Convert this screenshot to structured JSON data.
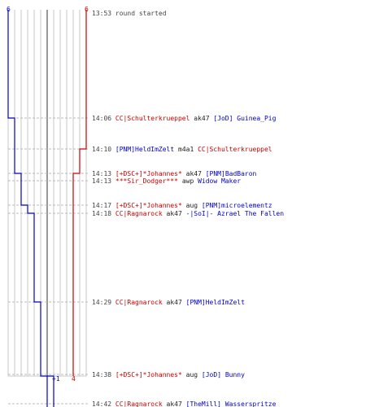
{
  "colors": {
    "team_blue": "#0000cc",
    "team_red": "#cc0000",
    "time": "#444444",
    "weapon": "#222222",
    "grid": "#c8c8c8",
    "median": "#777777",
    "dash": "#bbbbbb"
  },
  "score_top": {
    "blue": "6",
    "red": "6"
  },
  "score_bottom": {
    "blue": "1",
    "red": "4"
  },
  "events": [
    {
      "time": "13:53",
      "text": "round started",
      "killer": "",
      "weapon": "",
      "victim": "",
      "killer_team": "",
      "victim_team": ""
    },
    {
      "time": "14:06",
      "killer": "CC|Schulterkrueppel",
      "weapon": "ak47",
      "victim": "[JoD] Guinea_Pig",
      "killer_team": "red",
      "victim_team": "blue"
    },
    {
      "time": "14:10",
      "killer": "[PNM]HeldImZelt",
      "weapon": "m4a1",
      "victim": "CC|Schulterkrueppel",
      "killer_team": "blue",
      "victim_team": "red"
    },
    {
      "time": "14:13",
      "killer": "[+DSC+]*Johannes*",
      "weapon": "ak47",
      "victim": "[PNM]BadBaron",
      "killer_team": "red",
      "victim_team": "blue"
    },
    {
      "time": "14:13",
      "killer": "***Sir_Dodger***",
      "weapon": "awp",
      "victim": "Widow Maker",
      "killer_team": "red",
      "victim_team": "blue"
    },
    {
      "time": "14:17",
      "killer": "[+DSC+]*Johannes*",
      "weapon": "aug",
      "victim": "[PNM]microelementz",
      "killer_team": "red",
      "victim_team": "blue"
    },
    {
      "time": "14:18",
      "killer": "CC|Ragnarock",
      "weapon": "ak47",
      "victim": "-|SoI|- Azrael The Fallen",
      "killer_team": "red",
      "victim_team": "blue"
    },
    {
      "time": "14:29",
      "killer": "CC|Ragnarock",
      "weapon": "ak47",
      "victim": "[PNM]HeldImZelt",
      "killer_team": "red",
      "victim_team": "blue"
    },
    {
      "time": "14:38",
      "killer": "[+DSC+]*Johannes*",
      "weapon": "aug",
      "victim": "[JoD] Bunny",
      "killer_team": "red",
      "victim_team": "blue"
    },
    {
      "time": "14:42",
      "killer": "CC|Ragnarock",
      "weapon": "ak47",
      "victim": "[TheMill] Wasserspritze",
      "killer_team": "red",
      "victim_team": "blue"
    }
  ]
}
